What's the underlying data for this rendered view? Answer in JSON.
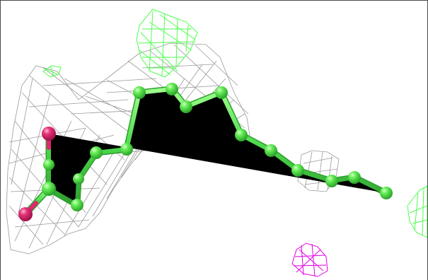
{
  "scene": {
    "description_free": true,
    "colors": {
      "background": "#ffffff",
      "density_mesh_gray": "#8f8f8f",
      "density_mesh_green": "#4dff4d",
      "density_mesh_magenta": "#e600e6",
      "carbon": "#44dd44",
      "carbon_highlight": "#b8ffb0",
      "oxygen": "#e0266e",
      "oxygen_highlight": "#ff9ac0",
      "frame_border": "#4a4a4a"
    },
    "icons": [
      "molecule-stick-model",
      "electron-density-mesh"
    ]
  }
}
